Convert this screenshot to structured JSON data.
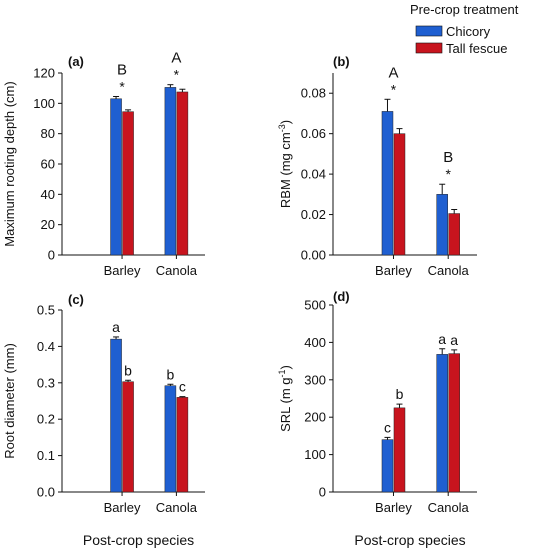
{
  "legend": {
    "title": "Pre-crop treatment",
    "placement": "top-right",
    "items": [
      {
        "label": "Chicory",
        "color": "#1f5fd1"
      },
      {
        "label": "Tall fescue",
        "color": "#c8141e"
      }
    ]
  },
  "colors": {
    "chicory": "#1f5fd1",
    "tall_fescue": "#c8141e",
    "axis": "#111111"
  },
  "shared_xlabel": "Post-crop species",
  "chart_data": [
    {
      "id": "a",
      "type": "bar",
      "panel_label": "(a)",
      "ylabel": "Maximum rooting depth (cm)",
      "xlabel": "",
      "categories": [
        "Barley",
        "Canola"
      ],
      "ylim": [
        0,
        120
      ],
      "yticks": [
        0,
        20,
        40,
        60,
        80,
        100,
        120
      ],
      "ytick_labels": [
        "0",
        "20",
        "40",
        "60",
        "80",
        "100",
        "120"
      ],
      "series": [
        {
          "name": "Chicory",
          "values": [
            103,
            110.5
          ],
          "errors": [
            1.5,
            1.8
          ]
        },
        {
          "name": "Tall fescue",
          "values": [
            94.5,
            107.5
          ],
          "errors": [
            1.2,
            1.8
          ]
        }
      ],
      "annotations": [
        {
          "category": 0,
          "letter": "B",
          "star": "*"
        },
        {
          "category": 1,
          "letter": "A",
          "star": "*"
        }
      ]
    },
    {
      "id": "b",
      "type": "bar",
      "panel_label": "(b)",
      "ylabel": "RBM (mg cm",
      "ylabel_sup": "-3",
      "ylabel_end": ")",
      "xlabel": "",
      "categories": [
        "Barley",
        "Canola"
      ],
      "ylim": [
        0,
        0.09
      ],
      "yticks": [
        0,
        0.02,
        0.04,
        0.06,
        0.08
      ],
      "ytick_labels": [
        "0.00",
        "0.02",
        "0.04",
        "0.06",
        "0.08"
      ],
      "series": [
        {
          "name": "Chicory",
          "values": [
            0.071,
            0.03
          ],
          "errors": [
            0.006,
            0.005
          ]
        },
        {
          "name": "Tall fescue",
          "values": [
            0.06,
            0.0205
          ],
          "errors": [
            0.0025,
            0.002
          ]
        }
      ],
      "annotations": [
        {
          "category": 0,
          "letter": "A",
          "star": "*"
        },
        {
          "category": 1,
          "letter": "B",
          "star": "*"
        }
      ]
    },
    {
      "id": "c",
      "type": "bar",
      "panel_label": "(c)",
      "ylabel": "Root diameter (mm)",
      "xlabel": "Post-crop species",
      "categories": [
        "Barley",
        "Canola"
      ],
      "ylim": [
        0,
        0.5
      ],
      "yticks": [
        0,
        0.1,
        0.2,
        0.3,
        0.4,
        0.5
      ],
      "ytick_labels": [
        "0.0",
        "0.1",
        "0.2",
        "0.3",
        "0.4",
        "0.5"
      ],
      "series": [
        {
          "name": "Chicory",
          "values": [
            0.42,
            0.292
          ],
          "errors": [
            0.006,
            0.004
          ],
          "letters": [
            "a",
            "b"
          ]
        },
        {
          "name": "Tall fescue",
          "values": [
            0.303,
            0.26
          ],
          "errors": [
            0.004,
            0.002
          ],
          "letters": [
            "b",
            "c"
          ]
        }
      ]
    },
    {
      "id": "d",
      "type": "bar",
      "panel_label": "(d)",
      "ylabel": "SRL (m g",
      "ylabel_sup": "-1",
      "ylabel_end": ")",
      "xlabel": "Post-crop species",
      "categories": [
        "Barley",
        "Canola"
      ],
      "ylim": [
        0,
        500
      ],
      "yticks": [
        0,
        100,
        200,
        300,
        400,
        500
      ],
      "ytick_labels": [
        "0",
        "100",
        "200",
        "300",
        "400",
        "500"
      ],
      "series": [
        {
          "name": "Chicory",
          "values": [
            140,
            368
          ],
          "errors": [
            6,
            15
          ],
          "letters": [
            "c",
            "a"
          ]
        },
        {
          "name": "Tall fescue",
          "values": [
            225,
            370
          ],
          "errors": [
            10,
            10
          ],
          "letters": [
            "b",
            "a"
          ]
        }
      ]
    }
  ]
}
